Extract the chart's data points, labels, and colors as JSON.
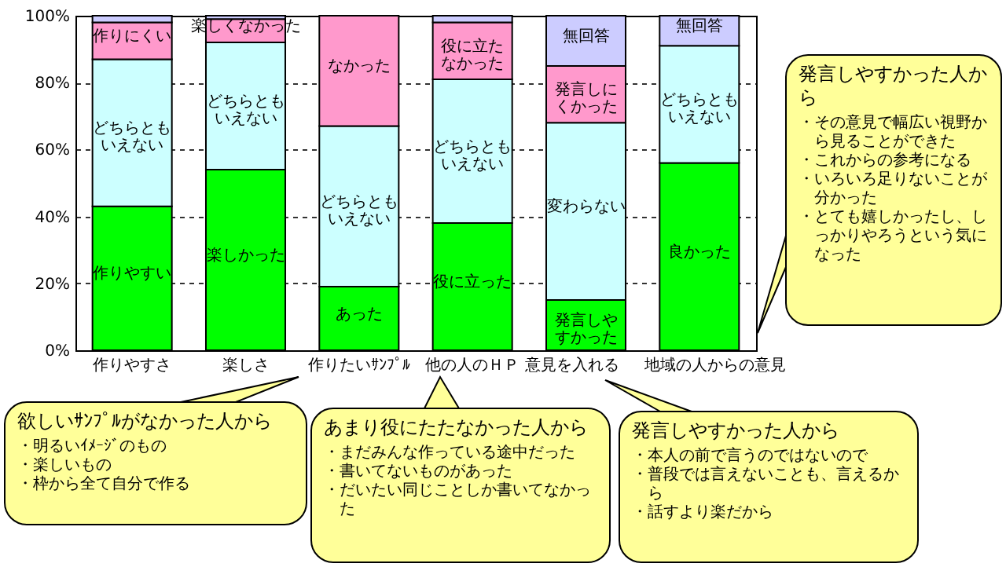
{
  "chart_data": {
    "type": "bar",
    "stacked": true,
    "categories": [
      "作りやすさ",
      "楽しさ",
      "作りたいｻﾝﾌﾟﾙ",
      "他の人のＨＰ",
      "意見を入れる",
      "地域の人からの意見"
    ],
    "series": [
      {
        "color": "#00ff00",
        "values": [
          43,
          54,
          19,
          38,
          15,
          56
        ],
        "value_labels": [
          "作りやすい",
          "楽しかった",
          "あった",
          "役に立った",
          "発言しやすかった",
          "良かった"
        ]
      },
      {
        "color": "#ccffff",
        "values": [
          44,
          38,
          48,
          43,
          53,
          35
        ],
        "value_labels": [
          "どちらともいえない",
          "どちらともいえない",
          "どちらともいえない",
          "どちらともいえない",
          "変わらない",
          "どちらともいえない"
        ]
      },
      {
        "color": "#ff99cc",
        "values": [
          11,
          7,
          33,
          17,
          17,
          null
        ],
        "value_labels": [
          "作りにくい",
          "楽しくなかった",
          "なかった",
          "役に立たなかった",
          "発言しにくかった",
          null
        ]
      },
      {
        "color": "#ccccff",
        "values": [
          2,
          1,
          null,
          2,
          15,
          9
        ],
        "value_labels": [
          null,
          null,
          null,
          null,
          "無回答",
          "無回答"
        ]
      }
    ],
    "ylim": [
      0,
      100
    ],
    "yticks": [
      {
        "value": 0,
        "label": "0%"
      },
      {
        "value": 20,
        "label": "20%"
      },
      {
        "value": 40,
        "label": "40%"
      },
      {
        "value": 60,
        "label": "60%"
      },
      {
        "value": 80,
        "label": "80%"
      },
      {
        "value": 100,
        "label": "100%"
      }
    ],
    "grid": "y",
    "annotations": [
      "発言しやすかった人から",
      "・その意見で幅広い視野から見ることができた",
      "・これからの参考になる",
      "・いろいろ足りないことが分かった",
      "・とても嬉しかったし、しっかりやろうという気になった",
      "欲しいｻﾝﾌﾟﾙがなかった人から",
      "・明るいｲﾒｰｼﾞのもの",
      "・楽しいもの",
      "・枠から全て自分で作る",
      "あまり役にたたなかった人から",
      "・まだみんな作っている途中だった",
      "・書いてないものがあった",
      "・だいたい同じことしか書いてなかった",
      "発言しやすかった人から",
      "・本人の前で言うのではないので",
      "・普段では言えないことも、言えるから",
      "・話すより楽だから"
    ]
  }
}
